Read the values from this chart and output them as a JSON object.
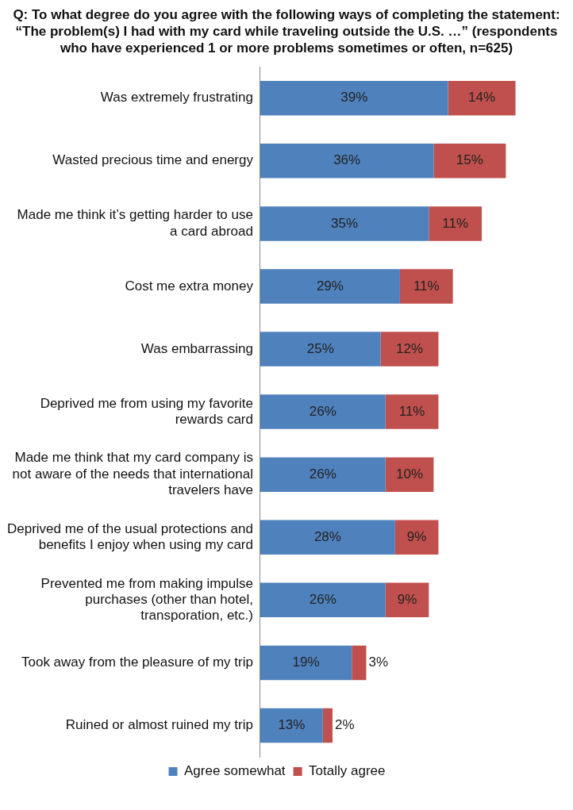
{
  "chart_data": {
    "type": "bar",
    "orientation": "horizontal",
    "stacked": true,
    "title": "Q: To what degree do you agree with the following ways of completing the statement: “The problem(s) I had with my card while traveling outside the U.S. …” (respondents who have experienced 1 or more problems sometimes or often,  n=625)",
    "categories": [
      "Was extremely frustrating",
      "Wasted precious time and energy",
      "Made me think it’s getting harder to use a card abroad",
      "Cost me extra money",
      "Was embarrassing",
      "Deprived me from using my favorite rewards card",
      "Made me think that my card company is not aware of the needs that international travelers have",
      "Deprived me of the usual protections and benefits I enjoy when using my card",
      "Prevented me from making impulse purchases (other than hotel, transporation, etc.)",
      "Took away from the pleasure of my trip",
      "Ruined or almost ruined my trip"
    ],
    "series": [
      {
        "name": "Agree somewhat",
        "color": "#4f81bd",
        "values": [
          39,
          36,
          35,
          29,
          25,
          26,
          26,
          28,
          26,
          19,
          13
        ],
        "value_labels": [
          "39%",
          "36%",
          "35%",
          "29%",
          "25%",
          "26%",
          "26%",
          "28%",
          "26%",
          "19%",
          "13%"
        ]
      },
      {
        "name": "Totally agree",
        "color": "#c0504d",
        "values": [
          14,
          15,
          11,
          11,
          12,
          11,
          10,
          9,
          9,
          3,
          2
        ],
        "value_labels": [
          "14%",
          "15%",
          "11%",
          "11%",
          "12%",
          "11%",
          "10%",
          "9%",
          "9%",
          "3%",
          "2%"
        ]
      }
    ],
    "grid": false,
    "legend": "bottom"
  }
}
